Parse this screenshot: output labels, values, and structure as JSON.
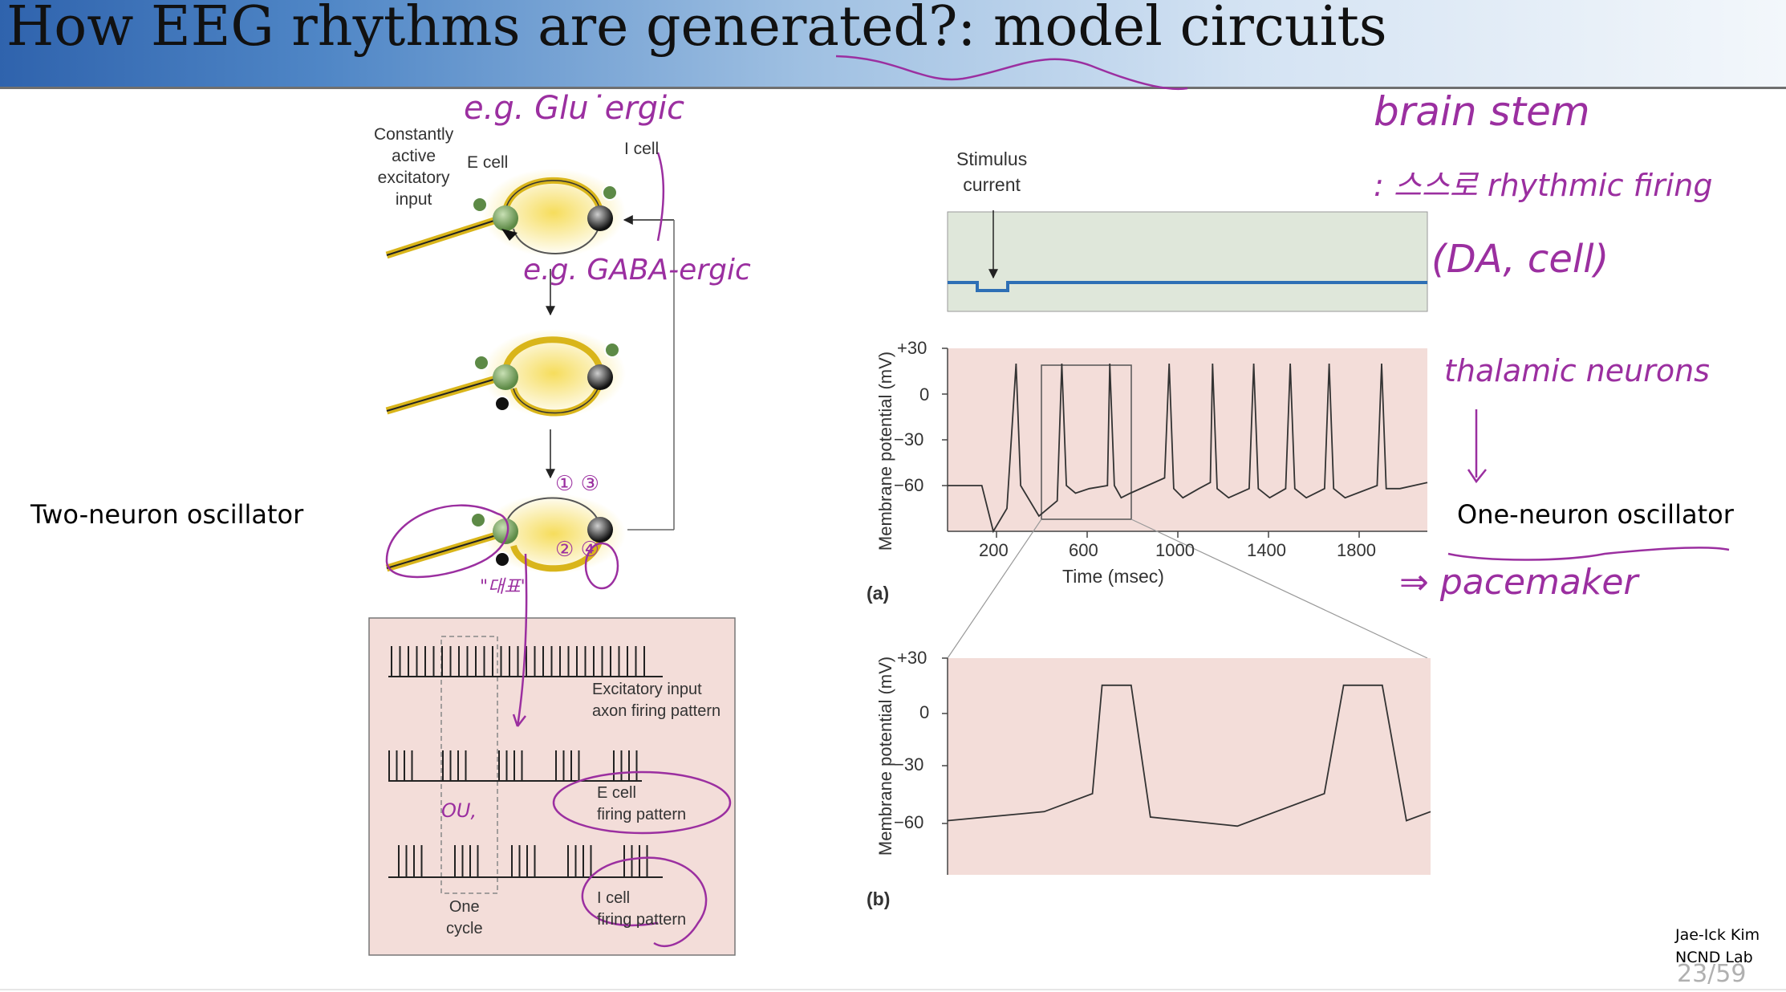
{
  "title": "How EEG rhythms are generated?: model circuits",
  "left_label": "Two-neuron oscillator",
  "right_label": "One-neuron oscillator",
  "circuit": {
    "input_label": [
      "Constantly",
      "active",
      "excitatory",
      "input"
    ],
    "e_cell": "E cell",
    "i_cell": "I cell"
  },
  "raster": {
    "excitatory": [
      "Excitatory input",
      "axon firing pattern"
    ],
    "e_cell": [
      "E cell",
      "firing pattern"
    ],
    "i_cell": [
      "I cell",
      "firing pattern"
    ],
    "cycle": [
      "One",
      "cycle"
    ]
  },
  "chart_a": {
    "stimulus_label": [
      "Stimulus",
      "current"
    ],
    "ylabel": "Membrane potential (mV)",
    "yticks": [
      "+30",
      "0",
      "−30",
      "−60"
    ],
    "xticks": [
      "200",
      "600",
      "1000",
      "1400",
      "1800"
    ],
    "xlabel": "Time (msec)",
    "panel": "(a)"
  },
  "chart_b": {
    "ylabel": "Membrane potential (mV)",
    "yticks": [
      "+30",
      "0",
      "−30",
      "−60"
    ],
    "panel": "(b)"
  },
  "chart_data": [
    {
      "type": "line",
      "xlabel": "Time (msec)",
      "ylabel": "Membrane potential (mV)",
      "xticks": [
        200,
        600,
        1000,
        1400,
        1800
      ],
      "yticks": [
        30,
        0,
        -30,
        -60
      ],
      "xlim": [
        0,
        2100
      ],
      "ylim": [
        -90,
        30
      ],
      "series": [
        {
          "x": [
            0,
            150,
            200,
            260,
            300,
            320,
            340,
            400,
            480,
            500,
            520,
            560,
            620,
            700,
            710,
            730,
            760,
            800,
            950,
            970,
            990,
            1030,
            1100,
            1150,
            1160,
            1180,
            1230,
            1320,
            1340,
            1360,
            1410,
            1480,
            1500,
            1520,
            1570,
            1650,
            1670,
            1690,
            1740,
            1880,
            1900,
            1920,
            1980,
            2100
          ],
          "y": [
            -60,
            -60,
            -90,
            -75,
            20,
            -60,
            -65,
            -80,
            -70,
            20,
            -60,
            -65,
            -62,
            -60,
            20,
            -60,
            -68,
            -65,
            -55,
            20,
            -62,
            -68,
            -62,
            -58,
            20,
            -62,
            -68,
            -62,
            20,
            -62,
            -68,
            -62,
            20,
            -62,
            -68,
            -62,
            20,
            -62,
            -68,
            -60,
            20,
            -62,
            -62,
            -58
          ]
        }
      ]
    },
    {
      "type": "line",
      "ylabel": "Membrane potential (mV)",
      "yticks": [
        30,
        0,
        -30,
        -60
      ],
      "ylim": [
        -90,
        30
      ],
      "series": [
        {
          "x": [
            0,
            0.2,
            0.3,
            0.32,
            0.34,
            0.36,
            0.38,
            0.42,
            0.6,
            0.78,
            0.82,
            0.84,
            0.86,
            0.88,
            0.9,
            0.95,
            1.0
          ],
          "y": [
            -60,
            -55,
            -45,
            15,
            15,
            15,
            15,
            -58,
            -63,
            -45,
            15,
            15,
            15,
            15,
            15,
            -60,
            -55
          ]
        }
      ]
    }
  ],
  "handwriting": {
    "eg_glu": "e.g. Glu˙ergic",
    "eg_gaba": "e.g. GABA-ergic",
    "brain_stem": "brain stem",
    "self_rhythmic": ": 스스로 rhythmic firing",
    "da_cell": "(DA, cell)",
    "thalamic": "thalamic neurons",
    "pacemaker": "⇒ pacemaker",
    "num_13": "① ③",
    "num_24": "② ④",
    "korean_note": "\"대표\"",
    "ou": "OU,"
  },
  "footer": {
    "author": "Jae-Ick Kim",
    "lab": "NCND Lab",
    "page": "23/59"
  },
  "colors": {
    "title_gradient_start": "#2f63ad",
    "panel_pink": "#f3ddd9",
    "stim_green": "#dfe7da",
    "stim_line": "#2e6fb5",
    "ink": "#9b2fa0",
    "axon_yellow": "#d9b51a"
  }
}
